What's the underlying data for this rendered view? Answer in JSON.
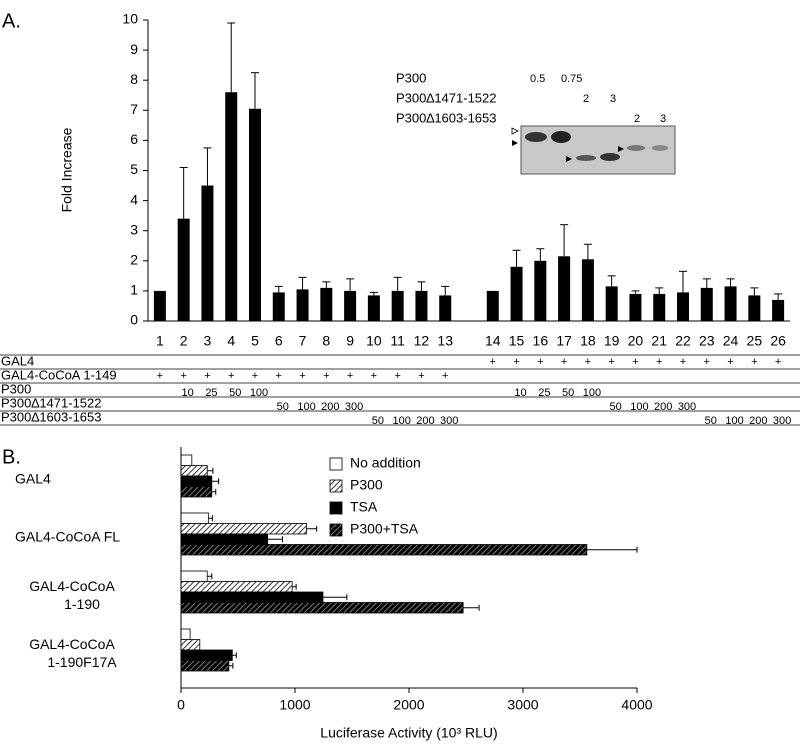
{
  "chart_data": [
    {
      "type": "bar",
      "panel": "A.",
      "y_label": "Fold Increase",
      "categories": [
        "1",
        "2",
        "3",
        "4",
        "5",
        "6",
        "7",
        "8",
        "9",
        "10",
        "11",
        "12",
        "13",
        null,
        "14",
        "15",
        "16",
        "17",
        "18",
        "19",
        "20",
        "21",
        "22",
        "23",
        "24",
        "25",
        "26"
      ],
      "values": [
        1.0,
        3.4,
        4.5,
        7.6,
        7.05,
        0.95,
        1.05,
        1.1,
        1.0,
        0.85,
        1.0,
        1.0,
        0.85,
        null,
        1.0,
        1.8,
        2.0,
        2.15,
        2.05,
        1.15,
        0.9,
        0.9,
        0.95,
        1.1,
        1.15,
        0.85,
        0.7
      ],
      "errors": [
        0,
        1.7,
        1.25,
        2.3,
        1.2,
        0.2,
        0.4,
        0.2,
        0.4,
        0.1,
        0.45,
        0.3,
        0.3,
        null,
        0,
        0.55,
        0.4,
        1.05,
        0.5,
        0.35,
        0.1,
        0.2,
        0.7,
        0.3,
        0.25,
        0.25,
        0.2
      ],
      "color": "#000000",
      "ylim": [
        0,
        10
      ],
      "yticks": [
        0,
        1,
        2,
        3,
        4,
        5,
        6,
        7,
        8,
        9,
        10
      ],
      "treatments": [
        {
          "label": "GAL4",
          "cells": [
            null,
            null,
            null,
            null,
            null,
            null,
            null,
            null,
            null,
            null,
            null,
            null,
            null,
            null,
            "+",
            "+",
            "+",
            "+",
            "+",
            "+",
            "+",
            "+",
            "+",
            "+",
            "+",
            "+",
            "+"
          ]
        },
        {
          "label": "GAL4-CoCoA 1-149",
          "cells": [
            "+",
            "+",
            "+",
            "+",
            "+",
            "+",
            "+",
            "+",
            "+",
            "+",
            "+",
            "+",
            "+",
            null,
            null,
            null,
            null,
            null,
            null,
            null,
            null,
            null,
            null,
            null,
            null,
            null,
            null
          ]
        },
        {
          "label": "P300",
          "cells": [
            null,
            10,
            25,
            50,
            100,
            null,
            null,
            null,
            null,
            null,
            null,
            null,
            null,
            null,
            null,
            10,
            25,
            50,
            100,
            null,
            null,
            null,
            null,
            null,
            null,
            null,
            null
          ]
        },
        {
          "label": "P300∆1471-1522",
          "cells": [
            null,
            null,
            null,
            null,
            null,
            50,
            100,
            200,
            300,
            null,
            null,
            null,
            null,
            null,
            null,
            null,
            null,
            null,
            null,
            50,
            100,
            200,
            300,
            null,
            null,
            null,
            null
          ]
        },
        {
          "label": "P300∆1603-1653",
          "cells": [
            null,
            null,
            null,
            null,
            null,
            null,
            null,
            null,
            null,
            50,
            100,
            200,
            300,
            null,
            null,
            null,
            null,
            null,
            null,
            null,
            null,
            null,
            null,
            50,
            100,
            200,
            300
          ]
        }
      ],
      "inset": [
        {
          "label": "P300",
          "amounts": [
            0.5,
            0.75
          ]
        },
        {
          "label": "P300∆1471-1522",
          "amounts": [
            2,
            3
          ]
        },
        {
          "label": "P300∆1603-1653",
          "amounts": [
            2,
            3
          ]
        }
      ]
    },
    {
      "type": "hbar",
      "panel": "B.",
      "x_label": "Luciferase Activity (10³ RLU)",
      "categories": [
        "GAL4",
        "GAL4-CoCoA FL",
        "GAL4-CoCoA\n1-190",
        "GAL4-CoCoA\n1-190F17A"
      ],
      "series": [
        {
          "name": "No addition",
          "color": "#ffffff",
          "hatch": false,
          "values": [
            95,
            240,
            230,
            80
          ],
          "errors": [
            null,
            35,
            40,
            null
          ]
        },
        {
          "name": "P300",
          "color": "#ffffff",
          "hatch": true,
          "values": [
            230,
            1100,
            975,
            165
          ],
          "errors": [
            50,
            90,
            35,
            null
          ]
        },
        {
          "name": "TSA",
          "color": "#000000",
          "hatch": false,
          "values": [
            270,
            760,
            1245,
            450
          ],
          "errors": [
            60,
            130,
            210,
            35
          ]
        },
        {
          "name": "P300+TSA",
          "color": "#000000",
          "hatch": true,
          "values": [
            270,
            3560,
            2475,
            420
          ],
          "errors": [
            35,
            440,
            140,
            35
          ]
        }
      ],
      "xlim": [
        0,
        4000
      ],
      "xticks": [
        0,
        1000,
        2000,
        3000,
        4000
      ],
      "legend": "upper-center"
    }
  ]
}
